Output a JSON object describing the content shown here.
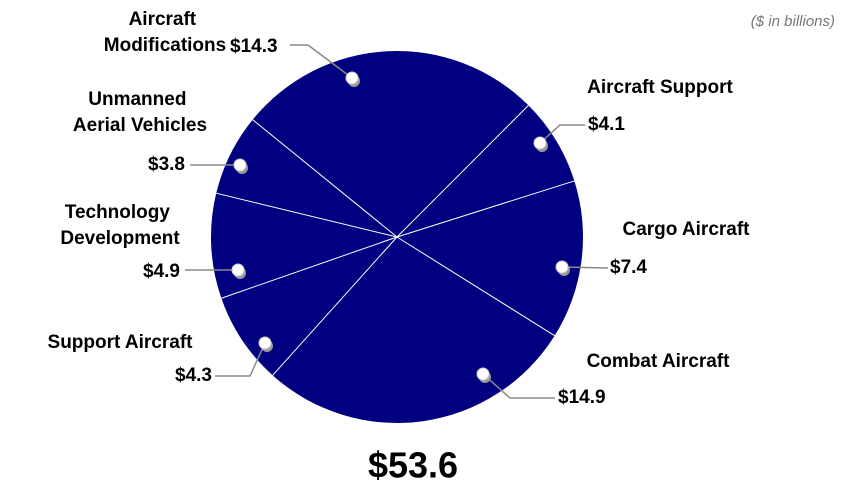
{
  "chart_data": {
    "type": "pie",
    "subtitle": "($ in billions)",
    "total_label": "$53.6",
    "color": "#000080",
    "categories": [
      "Aircraft Modifications",
      "Aircraft Support",
      "Cargo Aircraft",
      "Combat Aircraft",
      "Support Aircraft",
      "Technology Development",
      "Unmanned Aerial Vehicles"
    ],
    "values": [
      14.3,
      4.1,
      7.4,
      14.9,
      4.3,
      4.9,
      3.8
    ],
    "value_labels": [
      "$14.3",
      "$4.1",
      "$7.4",
      "$14.9",
      "$4.3",
      "$4.9",
      "$3.8"
    ]
  }
}
